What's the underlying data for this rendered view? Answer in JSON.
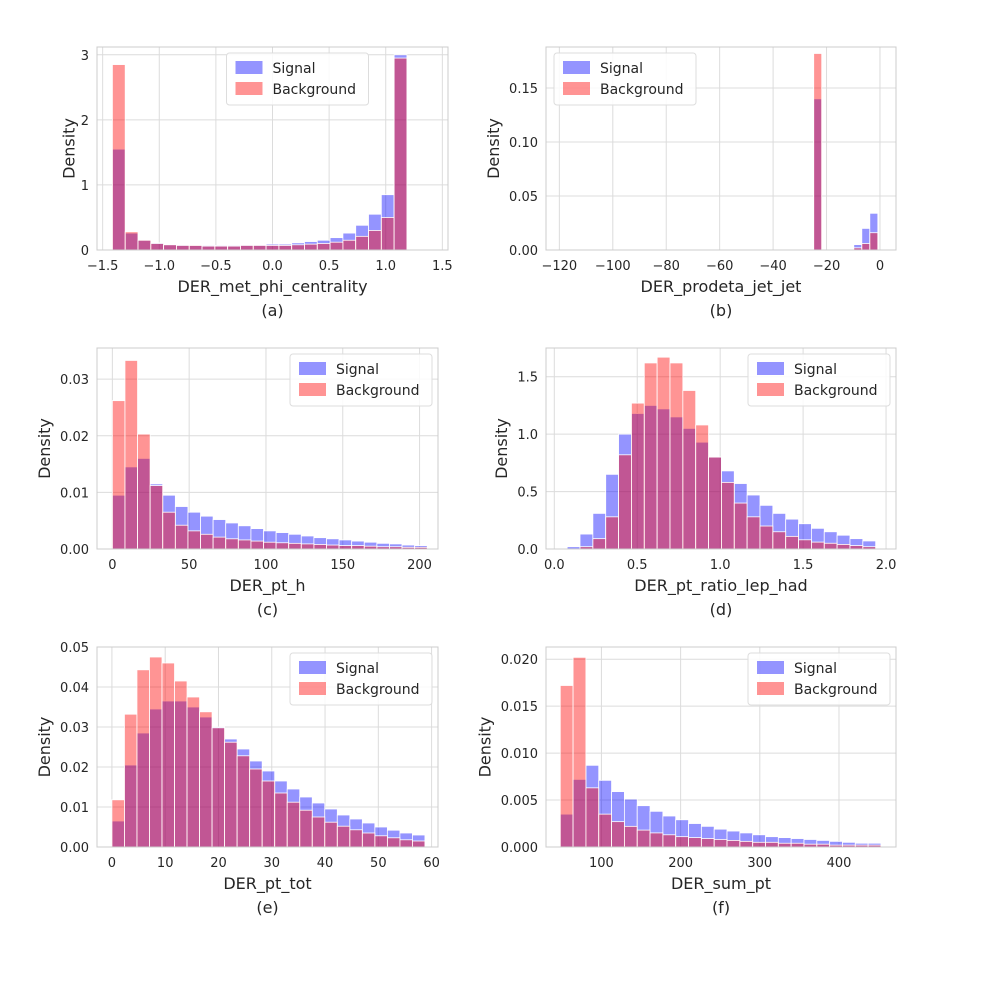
{
  "colors": {
    "signal": "#0000ff",
    "background": "#ff0000",
    "grid": "#dcdcdc",
    "frame": "#cccccc"
  },
  "chart_data": [
    {
      "type": "bar",
      "caption": "(a)",
      "xlabel": "DER_met_phi_centrality",
      "ylabel": "Density",
      "xlim": [
        -1.55,
        1.55
      ],
      "ylim": [
        0,
        3.12
      ],
      "xticks": [
        -1.5,
        -1.0,
        -0.5,
        0.0,
        0.5,
        1.0,
        1.5
      ],
      "xtick_labels": [
        "−1.5",
        "−1.0",
        "−0.5",
        "0.0",
        "0.5",
        "1.0",
        "1.5"
      ],
      "yticks": [
        0,
        1,
        2,
        3
      ],
      "ytick_labels": [
        "0",
        "1",
        "2",
        "3"
      ],
      "legend_position": "top-center",
      "bin_start": -1.414,
      "bin_width": 0.1131,
      "series": [
        {
          "name": "Signal",
          "values": [
            1.55,
            0.26,
            0.15,
            0.11,
            0.09,
            0.08,
            0.07,
            0.07,
            0.07,
            0.07,
            0.08,
            0.08,
            0.09,
            0.09,
            0.11,
            0.13,
            0.15,
            0.19,
            0.26,
            0.38,
            0.55,
            0.85,
            3.0
          ]
        },
        {
          "name": "Background",
          "values": [
            2.85,
            0.28,
            0.15,
            0.1,
            0.08,
            0.07,
            0.07,
            0.06,
            0.06,
            0.06,
            0.07,
            0.07,
            0.07,
            0.07,
            0.08,
            0.09,
            0.1,
            0.12,
            0.15,
            0.21,
            0.3,
            0.5,
            2.95
          ]
        }
      ]
    },
    {
      "type": "bar",
      "caption": "(b)",
      "xlabel": "DER_prodeta_jet_jet",
      "ylabel": "Density",
      "xlim": [
        -125,
        6
      ],
      "ylim": [
        0,
        0.188
      ],
      "xticks": [
        -120,
        -100,
        -80,
        -60,
        -40,
        -20,
        0
      ],
      "xtick_labels": [
        "−120",
        "−100",
        "−80",
        "−60",
        "−40",
        "−20",
        "0"
      ],
      "yticks": [
        0,
        0.05,
        0.1,
        0.15
      ],
      "ytick_labels": [
        "0.00",
        "0.05",
        "0.10",
        "0.15"
      ],
      "legend_position": "top-left",
      "bin_start": -24.8,
      "bin_width": 3.0,
      "series": [
        {
          "name": "Signal",
          "values": [
            0.14,
            0,
            0,
            0,
            0,
            0.005,
            0.02,
            0.034
          ]
        },
        {
          "name": "Background",
          "values": [
            0.182,
            0,
            0,
            0,
            0,
            0.002,
            0.006,
            0.016
          ]
        }
      ]
    },
    {
      "type": "bar",
      "caption": "(c)",
      "xlabel": "DER_pt_h",
      "ylabel": "Density",
      "xlim": [
        -10,
        212
      ],
      "ylim": [
        0,
        0.0355
      ],
      "xticks": [
        0,
        50,
        100,
        150,
        200
      ],
      "xtick_labels": [
        "0",
        "50",
        "100",
        "150",
        "200"
      ],
      "yticks": [
        0,
        0.01,
        0.02,
        0.03
      ],
      "ytick_labels": [
        "0.00",
        "0.01",
        "0.02",
        "0.03"
      ],
      "legend_position": "top-right",
      "bin_start": 0,
      "bin_width": 8.2,
      "series": [
        {
          "name": "Signal",
          "values": [
            0.0095,
            0.0145,
            0.016,
            0.0115,
            0.0095,
            0.0075,
            0.0065,
            0.0058,
            0.0052,
            0.0046,
            0.0041,
            0.0036,
            0.0032,
            0.0029,
            0.0026,
            0.0023,
            0.002,
            0.0018,
            0.0016,
            0.0014,
            0.0012,
            0.001,
            0.0009,
            0.0007,
            0.0006
          ]
        },
        {
          "name": "Background",
          "values": [
            0.0262,
            0.0333,
            0.0203,
            0.0112,
            0.0065,
            0.0042,
            0.0032,
            0.0026,
            0.0021,
            0.0018,
            0.0016,
            0.0014,
            0.0012,
            0.0011,
            0.001,
            0.0009,
            0.0008,
            0.0007,
            0.0006,
            0.0006,
            0.0005,
            0.0004,
            0.0004,
            0.0003,
            0.0003
          ]
        }
      ]
    },
    {
      "type": "bar",
      "caption": "(d)",
      "xlabel": "DER_pt_ratio_lep_had",
      "ylabel": "Density",
      "xlim": [
        -0.05,
        2.06
      ],
      "ylim": [
        0,
        1.75
      ],
      "xticks": [
        0,
        0.5,
        1.0,
        1.5,
        2.0
      ],
      "xtick_labels": [
        "0.0",
        "0.5",
        "1.0",
        "1.5",
        "2.0"
      ],
      "yticks": [
        0,
        0.5,
        1.0,
        1.5
      ],
      "ytick_labels": [
        "0.0",
        "0.5",
        "1.0",
        "1.5"
      ],
      "legend_position": "top-right",
      "bin_start": 0,
      "bin_width": 0.0775,
      "series": [
        {
          "name": "Signal",
          "values": [
            0,
            0.02,
            0.13,
            0.31,
            0.65,
            1.0,
            1.18,
            1.25,
            1.22,
            1.15,
            1.05,
            0.93,
            0.8,
            0.68,
            0.57,
            0.47,
            0.38,
            0.31,
            0.26,
            0.22,
            0.18,
            0.15,
            0.12,
            0.09,
            0.07
          ]
        },
        {
          "name": "Background",
          "values": [
            0,
            0,
            0.02,
            0.09,
            0.28,
            0.82,
            1.27,
            1.62,
            1.67,
            1.62,
            1.38,
            1.08,
            0.8,
            0.58,
            0.4,
            0.28,
            0.2,
            0.15,
            0.11,
            0.08,
            0.06,
            0.05,
            0.04,
            0.03,
            0.02
          ]
        }
      ]
    },
    {
      "type": "bar",
      "caption": "(e)",
      "xlabel": "DER_pt_tot",
      "ylabel": "Density",
      "xlim": [
        -2.8,
        61.2
      ],
      "ylim": [
        0,
        0.05
      ],
      "xticks": [
        0,
        10,
        20,
        30,
        40,
        50,
        60
      ],
      "xtick_labels": [
        "0",
        "10",
        "20",
        "30",
        "40",
        "50",
        "60"
      ],
      "yticks": [
        0,
        0.01,
        0.02,
        0.03,
        0.04,
        0.05
      ],
      "ytick_labels": [
        "0.00",
        "0.01",
        "0.02",
        "0.03",
        "0.04",
        "0.05"
      ],
      "legend_position": "top-right",
      "bin_start": 0,
      "bin_width": 2.35,
      "series": [
        {
          "name": "Signal",
          "values": [
            0.0065,
            0.0205,
            0.0285,
            0.0345,
            0.0365,
            0.0365,
            0.035,
            0.0325,
            0.03,
            0.027,
            0.0245,
            0.0215,
            0.019,
            0.0165,
            0.0145,
            0.0125,
            0.011,
            0.0095,
            0.008,
            0.007,
            0.006,
            0.005,
            0.0042,
            0.0035,
            0.003
          ]
        },
        {
          "name": "Background",
          "values": [
            0.0118,
            0.0332,
            0.0443,
            0.0475,
            0.046,
            0.0415,
            0.0375,
            0.0338,
            0.0298,
            0.0262,
            0.0228,
            0.0195,
            0.0165,
            0.0135,
            0.0112,
            0.0092,
            0.0075,
            0.0062,
            0.0052,
            0.0043,
            0.0035,
            0.0028,
            0.0023,
            0.0018,
            0.0015
          ]
        }
      ]
    },
    {
      "type": "bar",
      "caption": "(f)",
      "xlabel": "DER_sum_pt",
      "ylabel": "Density",
      "xlim": [
        30,
        472
      ],
      "ylim": [
        0,
        0.0213
      ],
      "xticks": [
        100,
        200,
        300,
        400
      ],
      "xtick_labels": [
        "100",
        "200",
        "300",
        "400"
      ],
      "yticks": [
        0,
        0.005,
        0.01,
        0.015,
        0.02
      ],
      "ytick_labels": [
        "0.000",
        "0.005",
        "0.010",
        "0.015",
        "0.020"
      ],
      "legend_position": "top-right",
      "bin_start": 48,
      "bin_width": 16.2,
      "series": [
        {
          "name": "Signal",
          "values": [
            0.0035,
            0.0072,
            0.0087,
            0.0071,
            0.0059,
            0.0051,
            0.0044,
            0.0038,
            0.0033,
            0.0029,
            0.0025,
            0.0022,
            0.0019,
            0.0017,
            0.0015,
            0.0013,
            0.0011,
            0.001,
            0.0009,
            0.0008,
            0.0007,
            0.0006,
            0.0005,
            0.0004,
            0.0004
          ]
        },
        {
          "name": "Background",
          "values": [
            0.0172,
            0.0202,
            0.0063,
            0.0035,
            0.0027,
            0.0022,
            0.0018,
            0.0015,
            0.0013,
            0.0011,
            0.001,
            0.0009,
            0.0008,
            0.0007,
            0.0006,
            0.0005,
            0.0005,
            0.0004,
            0.0004,
            0.0003,
            0.0003,
            0.0002,
            0.0002,
            0.0002,
            0.0002
          ]
        }
      ]
    }
  ]
}
